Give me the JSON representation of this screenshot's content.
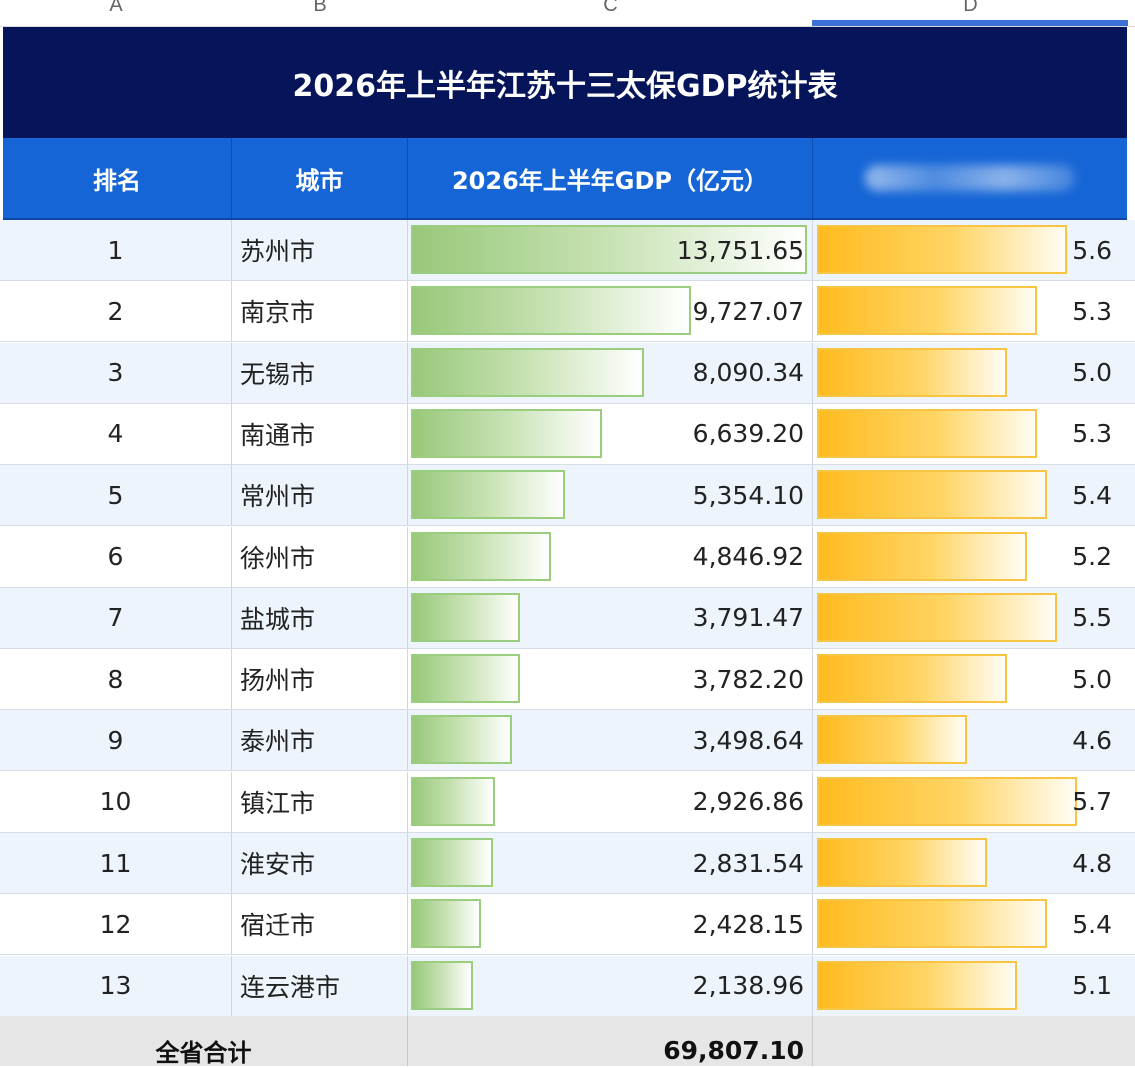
{
  "columns": [
    "A",
    "B",
    "C",
    "D"
  ],
  "title": "2026年上半年江苏十三太保GDP统计表",
  "headers": {
    "rank": "排名",
    "city": "城市",
    "gdp": "2026年上半年GDP（亿元）",
    "growth": ""
  },
  "rows": [
    {
      "rank": "1",
      "city": "苏州市",
      "gdp": "13,751.65",
      "growth": "5.6"
    },
    {
      "rank": "2",
      "city": "南京市",
      "gdp": "9,727.07",
      "growth": "5.3"
    },
    {
      "rank": "3",
      "city": "无锡市",
      "gdp": "8,090.34",
      "growth": "5.0"
    },
    {
      "rank": "4",
      "city": "南通市",
      "gdp": "6,639.20",
      "growth": "5.3"
    },
    {
      "rank": "5",
      "city": "常州市",
      "gdp": "5,354.10",
      "growth": "5.4"
    },
    {
      "rank": "6",
      "city": "徐州市",
      "gdp": "4,846.92",
      "growth": "5.2"
    },
    {
      "rank": "7",
      "city": "盐城市",
      "gdp": "3,791.47",
      "growth": "5.5"
    },
    {
      "rank": "8",
      "city": "扬州市",
      "gdp": "3,782.20",
      "growth": "5.0"
    },
    {
      "rank": "9",
      "city": "泰州市",
      "gdp": "3,498.64",
      "growth": "4.6"
    },
    {
      "rank": "10",
      "city": "镇江市",
      "gdp": "2,926.86",
      "growth": "5.7"
    },
    {
      "rank": "11",
      "city": "淮安市",
      "gdp": "2,831.54",
      "growth": "4.8"
    },
    {
      "rank": "12",
      "city": "宿迁市",
      "gdp": "2,428.15",
      "growth": "5.4"
    },
    {
      "rank": "13",
      "city": "连云港市",
      "gdp": "2,138.96",
      "growth": "5.1"
    }
  ],
  "total": {
    "label": "全省合计",
    "gdp": "69,807.10"
  },
  "colors": {
    "title_bg": "#06155a",
    "header_bg": "#1565d6",
    "gdp_bar": "#98c87a",
    "growth_bar": "#ffbb1f"
  }
}
